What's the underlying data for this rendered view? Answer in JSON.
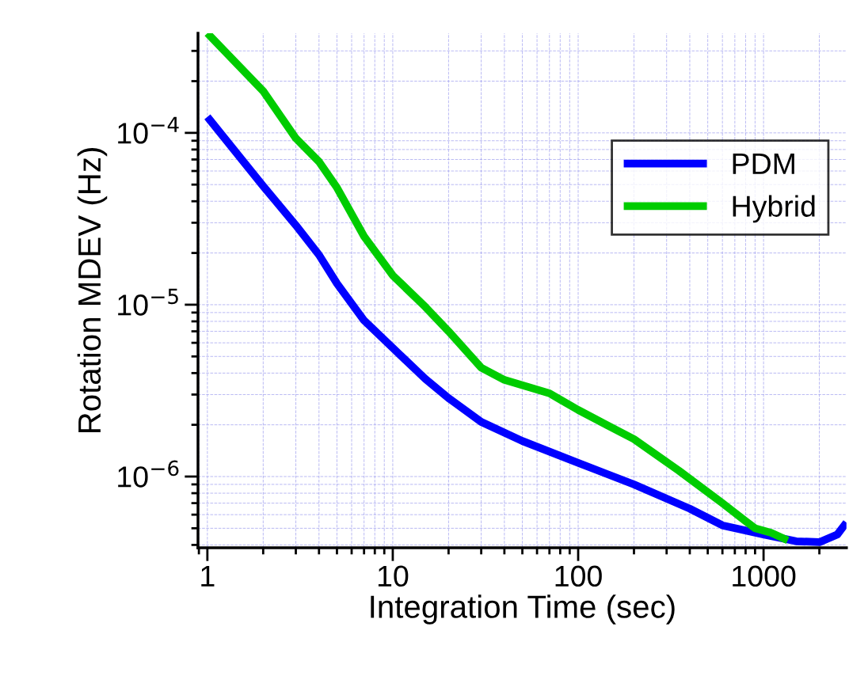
{
  "chart_data": {
    "type": "line",
    "xlabel": "Integration Time (sec)",
    "ylabel": "Rotation MDEV (Hz)",
    "log": "xy",
    "grid": true,
    "legend": "right",
    "line_style": "solid",
    "marker": "none",
    "xlim": [
      0.89,
      2800
    ],
    "xticks": [
      1,
      10,
      100,
      1000
    ],
    "ylim": [
      3.85e-07,
      0.00038
    ],
    "yticks": [
      {
        "value": 0.0001,
        "label": "10$^{−4}$"
      },
      {
        "value": 1e-05,
        "label": "10$^{−5}$"
      },
      {
        "value": 1e-06,
        "label": "10$^{−6}$"
      }
    ],
    "series": [
      {
        "name": "PDM",
        "color": "#0000ff",
        "x": [
          1,
          2,
          3,
          4,
          5,
          7,
          10,
          15,
          20,
          30,
          50,
          100,
          200,
          400,
          600,
          1000,
          1500,
          2000,
          2500,
          2800
        ],
        "values": [
          0.000124,
          4.9e-05,
          2.9e-05,
          1.95e-05,
          1.33e-05,
          8.1e-06,
          5.6e-06,
          3.7e-06,
          2.86e-06,
          2.08e-06,
          1.61e-06,
          1.2e-06,
          9e-07,
          6.5e-07,
          5.2e-07,
          4.6e-07,
          4.2e-07,
          4.15e-07,
          4.6e-07,
          5.4e-07
        ]
      },
      {
        "name": "Hybrid",
        "color": "#00cc00",
        "x": [
          1,
          2,
          3,
          4,
          5,
          7,
          10,
          15,
          20,
          30,
          40,
          70,
          100,
          200,
          350,
          600,
          800,
          900,
          1100,
          1350
        ],
        "values": [
          0.00038,
          0.000175,
          9.3e-05,
          6.8e-05,
          4.8e-05,
          2.5e-05,
          1.48e-05,
          9.7e-06,
          7e-06,
          4.3e-06,
          3.65e-06,
          3.05e-06,
          2.44e-06,
          1.65e-06,
          1.08e-06,
          7e-07,
          5.5e-07,
          5e-07,
          4.7e-07,
          4.25e-07
        ]
      }
    ]
  }
}
